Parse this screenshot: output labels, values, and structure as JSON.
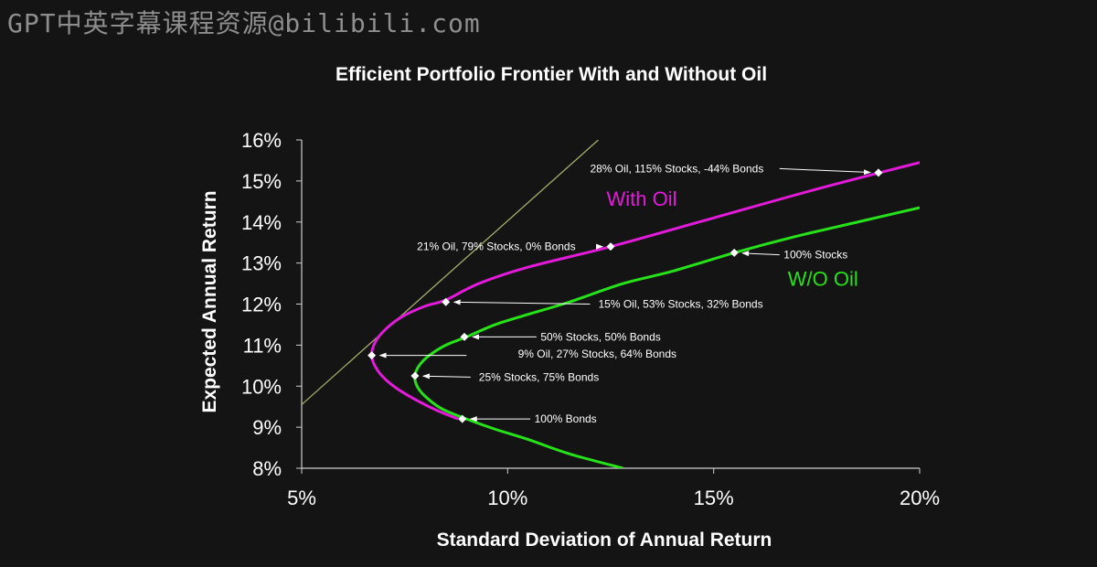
{
  "watermark": "GPT中英字幕课程资源@bilibili.com",
  "chart_data": {
    "type": "line",
    "title": "Efficient Portfolio Frontier With and Without Oil",
    "xlabel": "Standard Deviation of Annual Return",
    "ylabel": "Expected Annual Return",
    "xlim": [
      5,
      20
    ],
    "ylim": [
      8,
      16
    ],
    "x_ticks": [
      "5%",
      "10%",
      "15%",
      "20%"
    ],
    "x_tick_values": [
      5,
      10,
      15,
      20
    ],
    "y_ticks": [
      "8%",
      "9%",
      "10%",
      "11%",
      "12%",
      "13%",
      "14%",
      "15%",
      "16%"
    ],
    "y_tick_values": [
      8,
      9,
      10,
      11,
      12,
      13,
      14,
      15,
      16
    ],
    "grid": false,
    "series": [
      {
        "name": "With Oil",
        "color": "#e21bd9",
        "x": [
          8.8,
          8.3,
          7.8,
          7.3,
          6.95,
          6.75,
          6.7,
          6.8,
          7.05,
          7.45,
          8.0,
          8.5,
          9.3,
          10.5,
          12.5,
          15.0,
          17.5,
          20.0
        ],
        "y": [
          9.2,
          9.4,
          9.65,
          9.95,
          10.25,
          10.55,
          10.8,
          11.1,
          11.4,
          11.7,
          11.95,
          12.1,
          12.5,
          12.9,
          13.4,
          14.1,
          14.8,
          15.45
        ]
      },
      {
        "name": "W/O Oil",
        "color": "#27e21b",
        "x": [
          12.8,
          11.5,
          10.5,
          9.7,
          9.0,
          8.4,
          8.0,
          7.8,
          7.75,
          7.85,
          8.1,
          8.5,
          9.0,
          9.7,
          10.5,
          11.5,
          12.8,
          14.0,
          15.5,
          17.0,
          18.5,
          20.0
        ],
        "y": [
          8.0,
          8.35,
          8.7,
          8.95,
          9.2,
          9.45,
          9.75,
          10.0,
          10.25,
          10.5,
          10.75,
          11.0,
          11.2,
          11.5,
          11.75,
          12.05,
          12.5,
          12.8,
          13.25,
          13.65,
          14.0,
          14.35
        ]
      },
      {
        "name": "",
        "color": "#a6ad6e",
        "x": [
          5.0,
          12.2
        ],
        "y": [
          9.55,
          16.0
        ]
      }
    ],
    "series_labels": [
      {
        "text": "With Oil",
        "color": "#e21bd9",
        "x": 12.4,
        "y": 14.4
      },
      {
        "text": "W/O Oil",
        "color": "#27e21b",
        "x": 16.8,
        "y": 12.45
      }
    ],
    "points": [
      {
        "x": 19.0,
        "y": 15.2,
        "label": "28% Oil, 115% Stocks, -44% Bonds",
        "lx": 12.0,
        "ly": 15.3,
        "ax0": 16.6,
        "ay0": 15.3
      },
      {
        "x": 12.5,
        "y": 13.4,
        "label": "21% Oil, 79% Stocks, 0% Bonds",
        "lx": 7.8,
        "ly": 13.4,
        "ax0": 12.2,
        "ay0": 13.4
      },
      {
        "x": 15.5,
        "y": 13.25,
        "label": "100% Stocks",
        "lx": 16.7,
        "ly": 13.2,
        "ax0": 16.6,
        "ay0": 13.2
      },
      {
        "x": 8.5,
        "y": 12.05,
        "label": "15% Oil, 53% Stocks, 32% Bonds",
        "lx": 12.2,
        "ly": 12.0,
        "ax0": 12.0,
        "ay0": 12.0
      },
      {
        "x": 8.95,
        "y": 11.2,
        "label": "50% Stocks, 50% Bonds",
        "lx": 10.8,
        "ly": 11.2,
        "ax0": 10.7,
        "ay0": 11.2
      },
      {
        "x": 6.7,
        "y": 10.75,
        "label": "9% Oil, 27% Stocks, 64% Bonds",
        "lx": 10.25,
        "ly": 10.78,
        "ax0": 9.0,
        "ay0": 10.75
      },
      {
        "x": 7.75,
        "y": 10.25,
        "label": "25% Stocks, 75% Bonds",
        "lx": 9.3,
        "ly": 10.22,
        "ax0": 9.1,
        "ay0": 10.22
      },
      {
        "x": 8.9,
        "y": 9.2,
        "label": "100% Bonds",
        "lx": 10.65,
        "ly": 9.2,
        "ax0": 10.55,
        "ay0": 9.2
      }
    ]
  }
}
